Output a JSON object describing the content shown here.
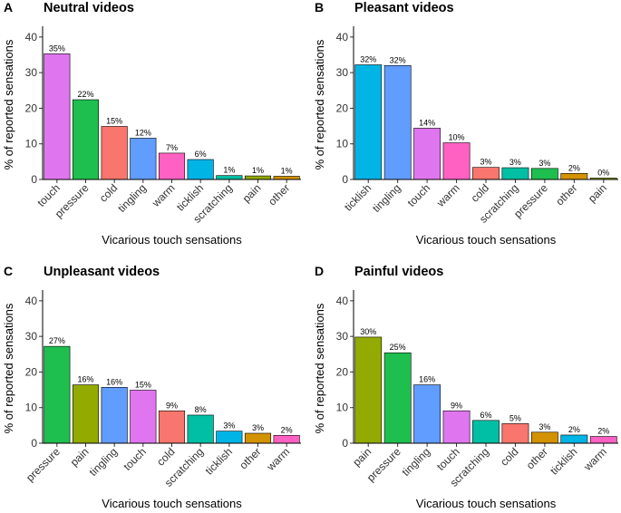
{
  "colors": {
    "touch": "#E076EF",
    "pressure": "#1FBF4F",
    "cold": "#F8766D",
    "tingling": "#619CFF",
    "warm": "#FF61C3",
    "ticklish": "#00B4E6",
    "scratching": "#00BFA4",
    "pain": "#93AA00",
    "other": "#D39200"
  },
  "chart_data": [
    {
      "type": "bar",
      "panel": "A",
      "title": "Neutral videos",
      "xlabel": "Vicarious touch sensations",
      "ylabel": "% of reported sensations",
      "ylim": [
        0,
        42
      ],
      "yticks": [
        0,
        10,
        20,
        30,
        40
      ],
      "categories": [
        "touch",
        "pressure",
        "cold",
        "tingling",
        "warm",
        "ticklish",
        "scratching",
        "pain",
        "other"
      ],
      "values": [
        35.3,
        22.4,
        14.9,
        11.6,
        7.4,
        5.6,
        1.1,
        1.0,
        0.9
      ],
      "labels": [
        "35%",
        "22%",
        "15%",
        "12%",
        "7%",
        "6%",
        "1%",
        "1%",
        "1%"
      ]
    },
    {
      "type": "bar",
      "panel": "B",
      "title": "Pleasant videos",
      "xlabel": "Vicarious touch sensations",
      "ylabel": "% of reported sensations",
      "ylim": [
        0,
        42
      ],
      "yticks": [
        0,
        10,
        20,
        30,
        40
      ],
      "categories": [
        "ticklish",
        "tingling",
        "touch",
        "warm",
        "cold",
        "scratching",
        "pressure",
        "other",
        "pain"
      ],
      "values": [
        32.2,
        32.0,
        14.4,
        10.3,
        3.4,
        3.3,
        3.1,
        1.7,
        0.4
      ],
      "labels": [
        "32%",
        "32%",
        "14%",
        "10%",
        "3%",
        "3%",
        "3%",
        "2%",
        "0%"
      ]
    },
    {
      "type": "bar",
      "panel": "C",
      "title": "Unpleasant videos",
      "xlabel": "Vicarious touch sensations",
      "ylabel": "% of reported sensations",
      "ylim": [
        0,
        42
      ],
      "yticks": [
        0,
        10,
        20,
        30,
        40
      ],
      "categories": [
        "pressure",
        "pain",
        "tingling",
        "touch",
        "cold",
        "scratching",
        "ticklish",
        "other",
        "warm"
      ],
      "values": [
        27.2,
        16.4,
        15.7,
        14.9,
        9.1,
        7.9,
        3.4,
        2.8,
        2.2
      ],
      "labels": [
        "27%",
        "16%",
        "16%",
        "15%",
        "9%",
        "8%",
        "3%",
        "3%",
        "2%"
      ]
    },
    {
      "type": "bar",
      "panel": "D",
      "title": "Painful videos",
      "xlabel": "Vicarious touch sensations",
      "ylabel": "% of reported sensations",
      "ylim": [
        0,
        42
      ],
      "yticks": [
        0,
        10,
        20,
        30,
        40
      ],
      "categories": [
        "pain",
        "pressure",
        "tingling",
        "touch",
        "scratching",
        "cold",
        "other",
        "ticklish",
        "warm"
      ],
      "values": [
        29.8,
        25.4,
        16.4,
        9.1,
        6.4,
        5.5,
        3.1,
        2.3,
        1.9
      ],
      "labels": [
        "30%",
        "25%",
        "16%",
        "9%",
        "6%",
        "5%",
        "3%",
        "2%",
        "2%"
      ]
    }
  ]
}
